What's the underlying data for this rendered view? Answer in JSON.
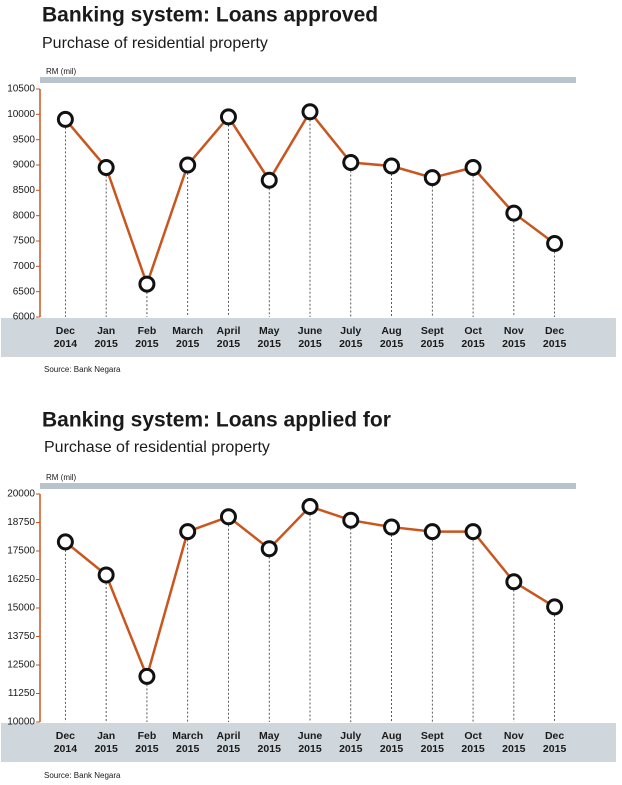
{
  "chart_data": [
    {
      "type": "line",
      "title": "Banking system: Loans approved",
      "subtitle": "Purchase of residential property",
      "y_label": "RM (mil)",
      "source": "Source: Bank Negara",
      "categories": [
        "Dec 2014",
        "Jan 2015",
        "Feb 2015",
        "March 2015",
        "April 2015",
        "May 2015",
        "June 2015",
        "July 2015",
        "Aug 2015",
        "Sept 2015",
        "Oct 2015",
        "Nov 2015",
        "Dec 2015"
      ],
      "values": [
        9900,
        8950,
        6650,
        9000,
        9950,
        8700,
        10050,
        9050,
        8980,
        8750,
        8950,
        8050,
        7450
      ],
      "color": "#c8561e",
      "ylim": [
        6000,
        10500
      ],
      "yticks": [
        6000,
        6500,
        7000,
        7500,
        8000,
        8500,
        9000,
        9500,
        10000,
        10500
      ]
    },
    {
      "type": "line",
      "title": "Banking system: Loans applied for",
      "subtitle": "Purchase of residential property",
      "y_label": "RM (mil)",
      "source": "Source: Bank Negara",
      "categories": [
        "Dec 2014",
        "Jan 2015",
        "Feb 2015",
        "March 2015",
        "April 2015",
        "May 2015",
        "June 2015",
        "July 2015",
        "Aug 2015",
        "Sept 2015",
        "Oct 2015",
        "Nov 2015",
        "Dec 2015"
      ],
      "values": [
        17900,
        16450,
        12000,
        18350,
        19000,
        17600,
        19450,
        18850,
        18550,
        18350,
        18350,
        16150,
        15050
      ],
      "color": "#c8561e",
      "ylim": [
        10000,
        20000
      ],
      "yticks": [
        10000,
        11250,
        12500,
        13750,
        15000,
        16250,
        17500,
        18750,
        20000
      ]
    }
  ]
}
